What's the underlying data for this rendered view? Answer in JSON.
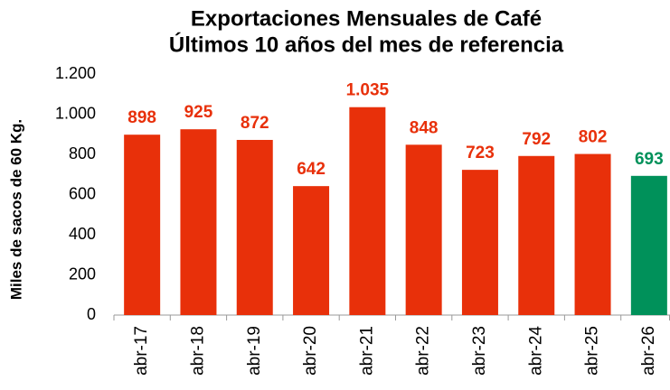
{
  "chart_data": {
    "type": "bar",
    "title": [
      "Exportaciones Mensuales de Café",
      "Últimos 10 años del mes de referencia"
    ],
    "y_label": "Miles de sacos de 60 Kg.",
    "categories": [
      "abr-17",
      "abr-18",
      "abr-19",
      "abr-20",
      "abr-21",
      "abr-22",
      "abr-23",
      "abr-24",
      "abr-25",
      "abr-26"
    ],
    "values": [
      898,
      925,
      872,
      642,
      1035,
      848,
      723,
      792,
      802,
      693
    ],
    "value_labels": [
      "898",
      "925",
      "872",
      "642",
      "1.035",
      "848",
      "723",
      "792",
      "802",
      "693"
    ],
    "colors": [
      "#e8300a",
      "#e8300a",
      "#e8300a",
      "#e8300a",
      "#e8300a",
      "#e8300a",
      "#e8300a",
      "#e8300a",
      "#e8300a",
      "#00915a"
    ],
    "ylim": [
      0,
      1200
    ],
    "yticks": [
      0,
      200,
      400,
      600,
      800,
      {
        "value": 1000,
        "label": "1.000"
      },
      {
        "value": 1200,
        "label": "1.200"
      }
    ],
    "grid": false
  }
}
